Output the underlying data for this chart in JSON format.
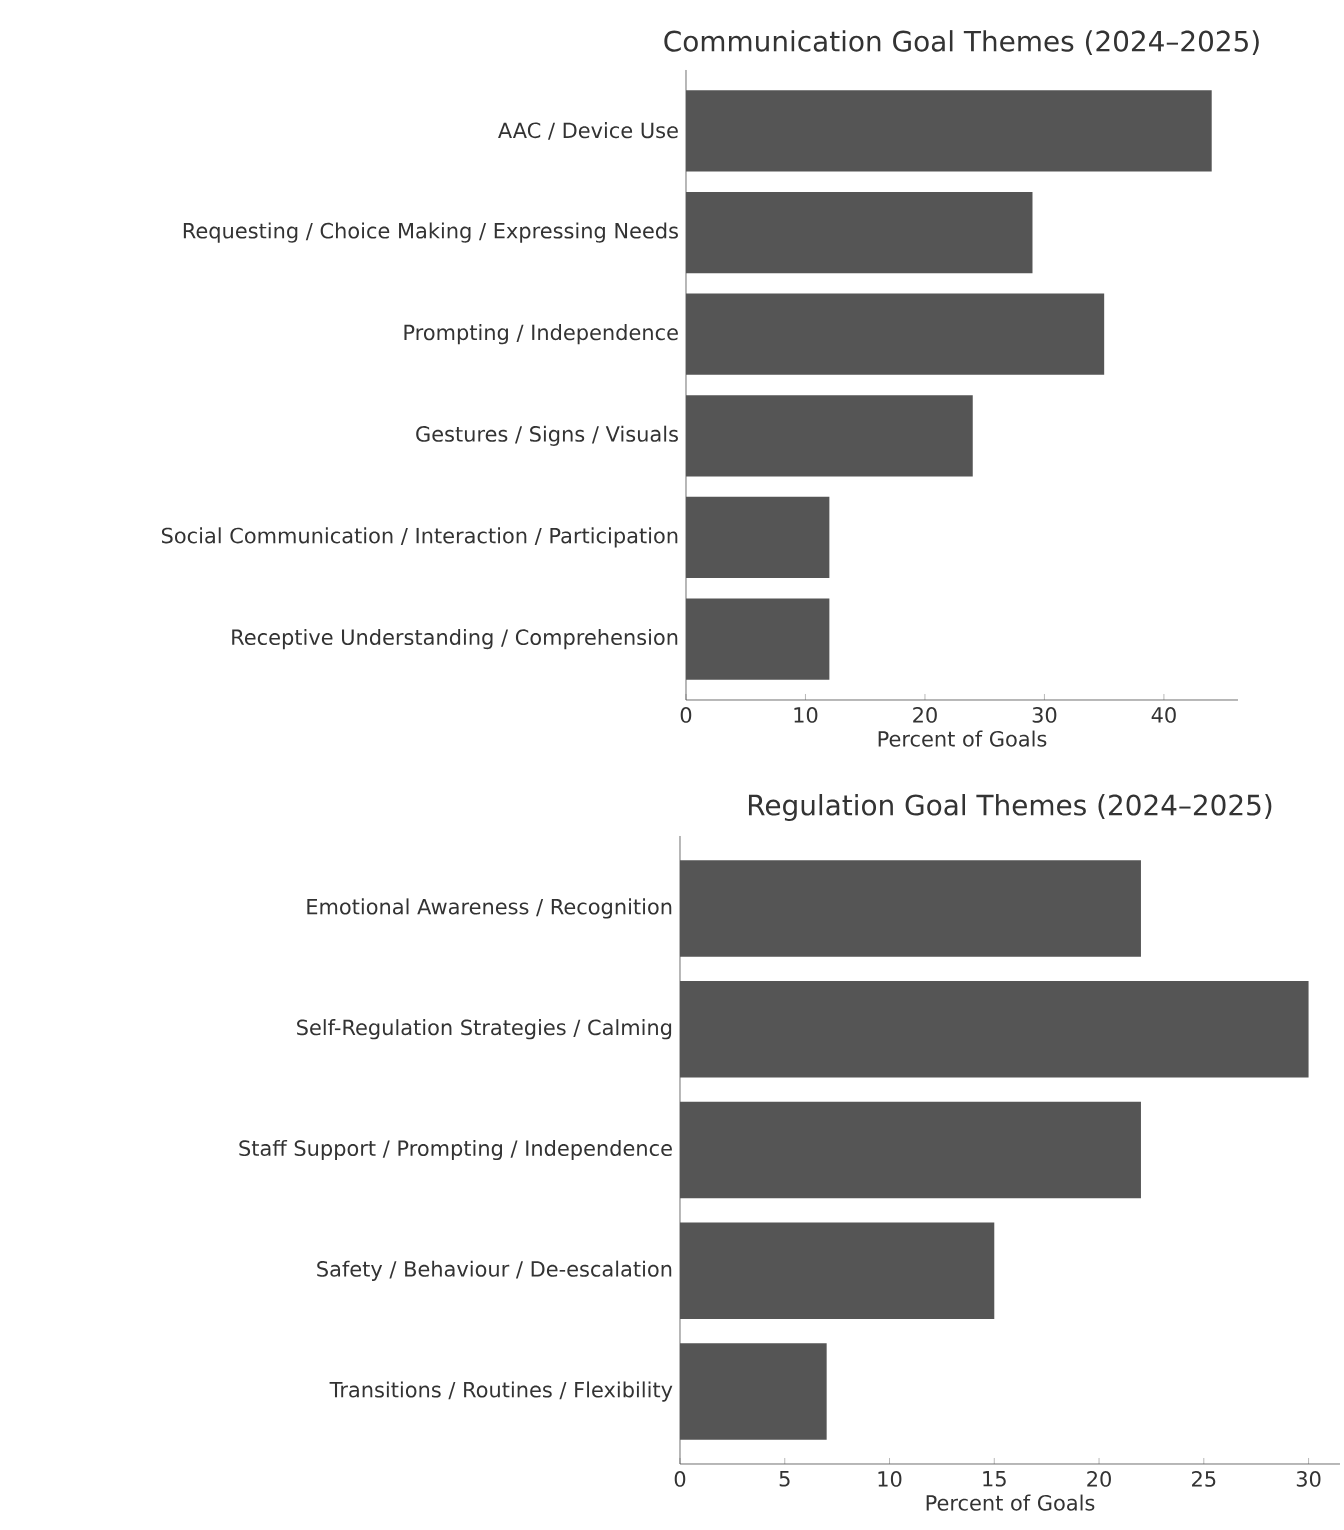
{
  "chart_data": [
    {
      "type": "bar",
      "orientation": "horizontal",
      "title": "Communication Goal Themes (2024–2025)",
      "xlabel": "Percent of Goals",
      "categories": [
        "AAC / Device Use",
        "Requesting / Choice Making / Expressing Needs",
        "Prompting / Independence",
        "Gestures / Signs / Visuals",
        "Social Communication / Interaction / Participation",
        "Receptive Understanding / Comprehension"
      ],
      "values": [
        44,
        29,
        35,
        24,
        12,
        12
      ],
      "color": "#555555",
      "xlim": [
        0,
        46.2
      ],
      "xticks": [
        0,
        10,
        20,
        30,
        40
      ]
    },
    {
      "type": "bar",
      "orientation": "horizontal",
      "title": "Regulation Goal Themes (2024–2025)",
      "xlabel": "Percent of Goals",
      "categories": [
        "Emotional Awareness / Recognition",
        "Self-Regulation Strategies / Calming",
        "Staff Support / Prompting / Independence",
        "Safety / Behaviour / De-escalation",
        "Transitions / Routines / Flexibility"
      ],
      "values": [
        22,
        30,
        22,
        15,
        7
      ],
      "color": "#555555",
      "xlim": [
        0,
        31.5
      ],
      "xticks": [
        0,
        5,
        10,
        15,
        20,
        25,
        30
      ]
    }
  ]
}
